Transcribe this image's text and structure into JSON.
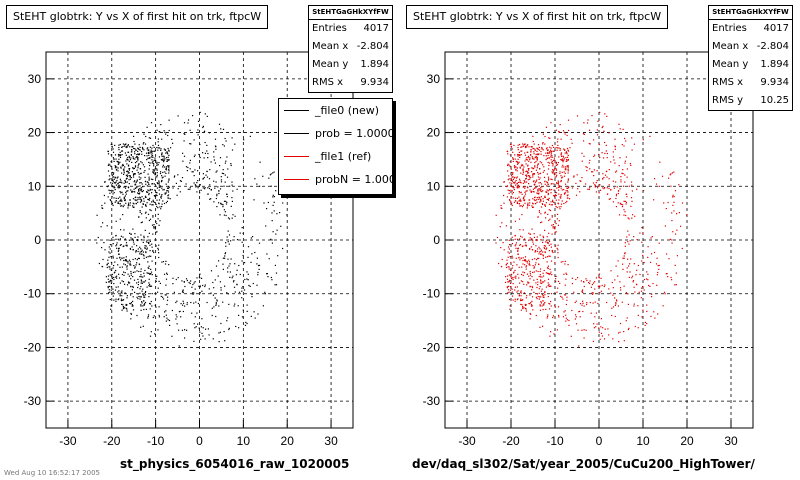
{
  "chart_data": [
    {
      "type": "scatter",
      "title": "StEHT globtrk: Y vs X of first hit on trk, ftpcW",
      "xlabel": "st_physics_6054016_raw_1020005",
      "ylabel": "",
      "xlim": [
        -35,
        35
      ],
      "ylim": [
        -35,
        35
      ],
      "xticks": [
        -30,
        -20,
        -10,
        0,
        10,
        20,
        30
      ],
      "yticks": [
        -30,
        -20,
        -10,
        0,
        10,
        20,
        30
      ],
      "grid": true,
      "color": "#000000",
      "series": [
        {
          "name": "_file0 (new)",
          "n_points": 4017,
          "description_of_shape": "ring r 6-24 with central hole r<7"
        }
      ],
      "stats": {
        "header": "StEHTGaGHkXYfFW",
        "rows": [
          {
            "label": "Entries",
            "value": "4017"
          },
          {
            "label": "Mean x",
            "value": "-2.804"
          },
          {
            "label": "Mean y",
            "value": "1.894"
          },
          {
            "label": "RMS x",
            "value": "9.934"
          }
        ]
      },
      "legend": {
        "placement": "top-right",
        "entries": [
          {
            "label": "_file0 (new)",
            "color": "#000000"
          },
          {
            "label": "prob = 1.000000",
            "color": "#000000"
          },
          {
            "label": "_file1 (ref)",
            "color": "#e00000"
          },
          {
            "label": "probN = 1.000000",
            "color": "#e00000"
          }
        ]
      }
    },
    {
      "type": "scatter",
      "title": "StEHT globtrk: Y vs X of first hit on trk, ftpcW",
      "xlabel": "dev/daq_sl302/Sat/year_2005/CuCu200_HighTower/",
      "ylabel": "",
      "xlim": [
        -35,
        35
      ],
      "ylim": [
        -35,
        35
      ],
      "xticks": [
        -30,
        -20,
        -10,
        0,
        10,
        20,
        30
      ],
      "yticks": [
        -30,
        -20,
        -10,
        0,
        10,
        20,
        30
      ],
      "grid": true,
      "color": "#e00000",
      "series": [
        {
          "name": "_file1 (ref)",
          "n_points": 4017
        }
      ],
      "stats": {
        "header": "StEHTGaGHkXYfFW",
        "rows": [
          {
            "label": "Entries",
            "value": "4017"
          },
          {
            "label": "Mean x",
            "value": "-2.804"
          },
          {
            "label": "Mean y",
            "value": "1.894"
          },
          {
            "label": "RMS x",
            "value": "9.934"
          },
          {
            "label": "RMS y",
            "value": "10.25"
          }
        ]
      }
    }
  ],
  "footnote": "Wed Aug 10 16:52:17 2005"
}
